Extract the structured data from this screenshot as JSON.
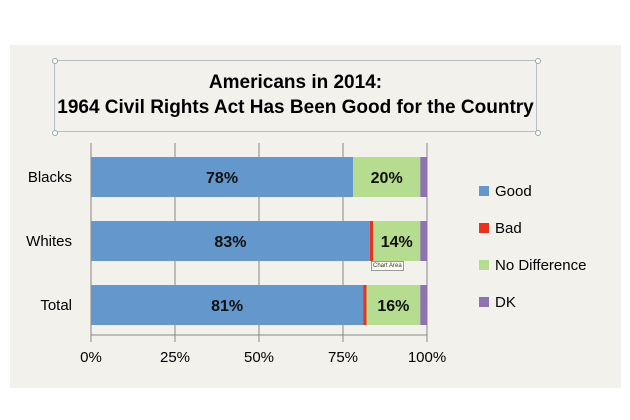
{
  "chart_data": {
    "type": "bar",
    "orientation": "horizontal",
    "stacked": "percent",
    "title": "Americans in 2014:",
    "subtitle": "1964 Civil Rights Act Has Been Good for the Country",
    "categories": [
      "Blacks",
      "Whites",
      "Total"
    ],
    "series": [
      {
        "name": "Good",
        "color": "#6497cc",
        "values": [
          78,
          83,
          81
        ],
        "labels": [
          "78%",
          "83%",
          "81%"
        ]
      },
      {
        "name": "Bad",
        "color": "#e8321e",
        "values": [
          0,
          1,
          1
        ],
        "labels": [
          "",
          "",
          ""
        ]
      },
      {
        "name": "No Difference",
        "color": "#b5dc8f",
        "values": [
          20,
          14,
          16
        ],
        "labels": [
          "20%",
          "14%",
          "16%"
        ]
      },
      {
        "name": "DK",
        "color": "#8e73b0",
        "values": [
          2,
          2,
          2
        ],
        "labels": [
          "",
          "",
          ""
        ]
      }
    ],
    "xlim": [
      0,
      100
    ],
    "xticks": [
      "0%",
      "25%",
      "50%",
      "75%",
      "100%"
    ],
    "grid": "vertical",
    "legend": "right"
  },
  "tooltip": "Chart Area"
}
